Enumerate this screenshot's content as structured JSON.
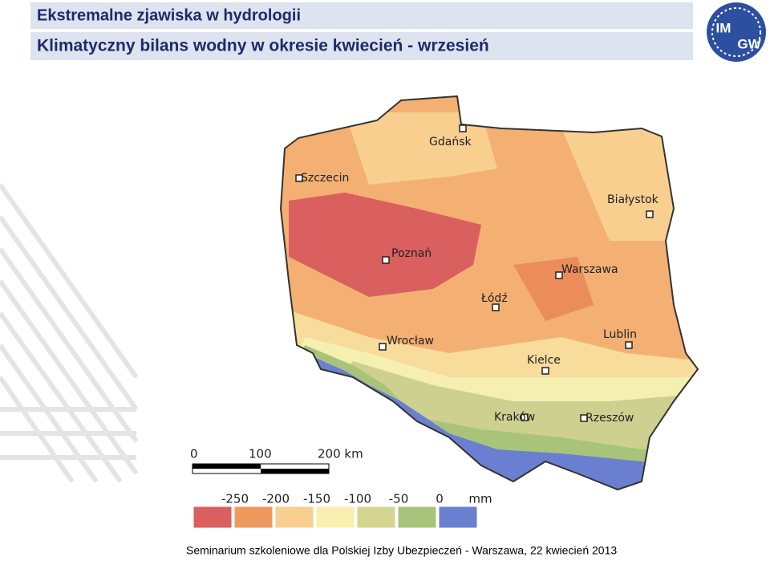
{
  "header": {
    "title": "Ekstremalne zjawiska w hydrologii",
    "subtitle": "Klimatyczny bilans wodny w okresie kwiecień - wrzesień"
  },
  "logo": {
    "top": "IM",
    "bottom": "GW"
  },
  "map": {
    "cities": [
      "Gdańsk",
      "Szczecin",
      "Białystok",
      "Poznań",
      "Warszawa",
      "Łódź",
      "Wrocław",
      "Lublin",
      "Kielce",
      "Kraków",
      "Rzeszów"
    ]
  },
  "scale_bar": {
    "labels": [
      "0",
      "100",
      "200 km"
    ]
  },
  "legend": {
    "labels": [
      "-250",
      "-200",
      "-150",
      "-100",
      "-50",
      "0",
      "mm"
    ]
  },
  "footer": "Seminarium szkoleniowe dla Polskiej Izby Ubezpieczeń - Warszawa, 22 kwiecień 2013"
}
